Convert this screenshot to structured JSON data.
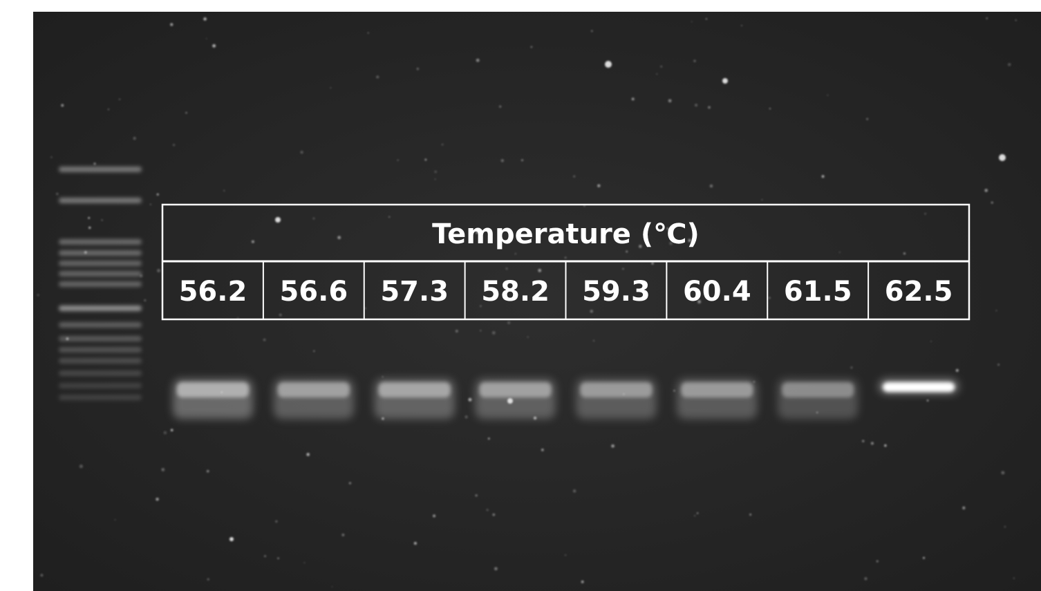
{
  "table": {
    "header": "Temperature (℃)",
    "columns": [
      "56.2",
      "56.6",
      "57.3",
      "58.2",
      "59.3",
      "60.4",
      "61.5",
      "62.5"
    ]
  }
}
